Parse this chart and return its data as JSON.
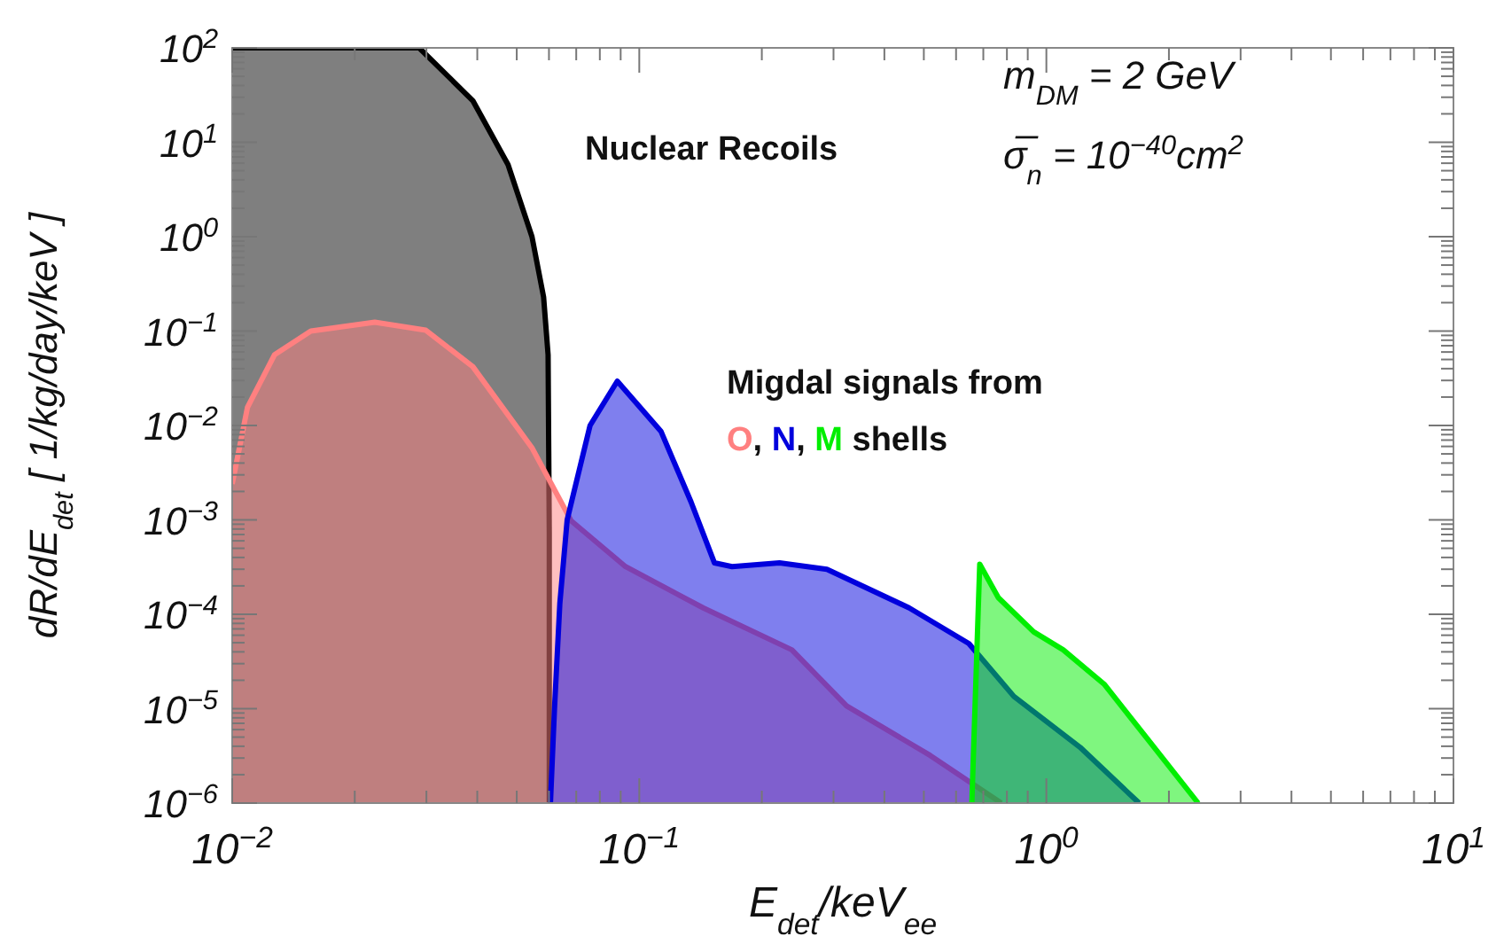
{
  "chart_data": {
    "type": "area",
    "xlabel": "E$_{det}$/keV$_{ee}$",
    "ylabel": "dR/dE$_{det}$ [ 1/kg/day/keV ]",
    "log": "xy",
    "grid": false,
    "xlim": [
      0.01,
      10
    ],
    "ylim": [
      1e-06,
      100
    ],
    "xticks": [
      {
        "value": 0.01,
        "label": "10$^{−2}$"
      },
      {
        "value": 0.02,
        "label": null
      },
      {
        "value": 0.03,
        "label": null
      },
      {
        "value": 0.04,
        "label": null
      },
      {
        "value": 0.05,
        "label": null
      },
      {
        "value": 0.06,
        "label": null
      },
      {
        "value": 0.07,
        "label": null
      },
      {
        "value": 0.08,
        "label": null
      },
      {
        "value": 0.09,
        "label": null
      },
      {
        "value": 0.1,
        "label": "10$^{−1}$"
      },
      {
        "value": 0.2,
        "label": null
      },
      {
        "value": 0.3,
        "label": null
      },
      {
        "value": 0.4,
        "label": null
      },
      {
        "value": 0.5,
        "label": null
      },
      {
        "value": 0.6,
        "label": null
      },
      {
        "value": 0.7,
        "label": null
      },
      {
        "value": 0.8,
        "label": null
      },
      {
        "value": 0.9,
        "label": null
      },
      {
        "value": 1,
        "label": "10$^{0}$"
      },
      {
        "value": 2,
        "label": null
      },
      {
        "value": 3,
        "label": null
      },
      {
        "value": 4,
        "label": null
      },
      {
        "value": 5,
        "label": null
      },
      {
        "value": 6,
        "label": null
      },
      {
        "value": 7,
        "label": null
      },
      {
        "value": 8,
        "label": null
      },
      {
        "value": 9,
        "label": null
      },
      {
        "value": 10,
        "label": "10$^{1}$"
      }
    ],
    "yticks": [
      {
        "value": 1e-06,
        "label": "10$^{−6}$"
      },
      {
        "value": 1e-05,
        "label": "10$^{−5}$"
      },
      {
        "value": 0.0001,
        "label": "10$^{−4}$"
      },
      {
        "value": 0.001,
        "label": "10$^{−3}$"
      },
      {
        "value": 0.01,
        "label": "10$^{−2}$"
      },
      {
        "value": 0.1,
        "label": "10$^{−1}$"
      },
      {
        "value": 1,
        "label": "10$^{0}$"
      },
      {
        "value": 10,
        "label": "10$^{1}$"
      },
      {
        "value": 100,
        "label": "10$^{2}$"
      }
    ],
    "series": [
      {
        "name": "Nuclear Recoils",
        "color": "#000000",
        "x": [
          0.01,
          0.0288,
          0.039,
          0.0476,
          0.0545,
          0.0582,
          0.0597,
          0.0601,
          0.0601
        ],
        "values": [
          100,
          100,
          27.6,
          5.8,
          1.0,
          0.23,
          0.056,
          0.00074,
          1e-06
        ]
      },
      {
        "name": "O",
        "color": "#ff8080",
        "x": [
          0.01,
          0.0109,
          0.0127,
          0.0156,
          0.0224,
          0.0299,
          0.039,
          0.0545,
          0.068,
          0.0925,
          0.1435,
          0.237,
          0.323,
          0.518,
          0.775
        ],
        "values": [
          0.0024,
          0.0155,
          0.056,
          0.1,
          0.124,
          0.102,
          0.042,
          0.0058,
          0.00098,
          0.00032,
          0.000117,
          4.2e-05,
          1.07e-05,
          3.2e-06,
          1e-06
        ]
      },
      {
        "name": "N",
        "color": "#0000dd",
        "x": [
          0.0605,
          0.0619,
          0.0638,
          0.0665,
          0.0757,
          0.0883,
          0.113,
          0.134,
          0.153,
          0.169,
          0.221,
          0.289,
          0.46,
          0.645,
          0.832,
          1.21,
          1.69
        ],
        "values": [
          1e-06,
          1e-05,
          0.00013,
          0.001,
          0.01,
          0.0295,
          0.0087,
          0.00155,
          0.00035,
          0.00032,
          0.00035,
          0.0003,
          0.000117,
          4.9e-05,
          1.35e-05,
          3.9e-06,
          1e-06
        ]
      },
      {
        "name": "M",
        "color": "#00ee00",
        "x": [
          0.656,
          0.686,
          0.762,
          0.931,
          1.1,
          1.39,
          1.77,
          2.36
        ],
        "values": [
          1e-06,
          0.00034,
          0.00015,
          6.5e-05,
          4.2e-05,
          1.8e-05,
          4.8e-06,
          1e-06
        ]
      }
    ],
    "annotations": [
      "m$_{DM}$ = 2 GeV",
      "σ̅$_{n}$ = 10$^{−40}$cm$^{2}$",
      "Migdal signals from",
      ",",
      "shells"
    ]
  }
}
